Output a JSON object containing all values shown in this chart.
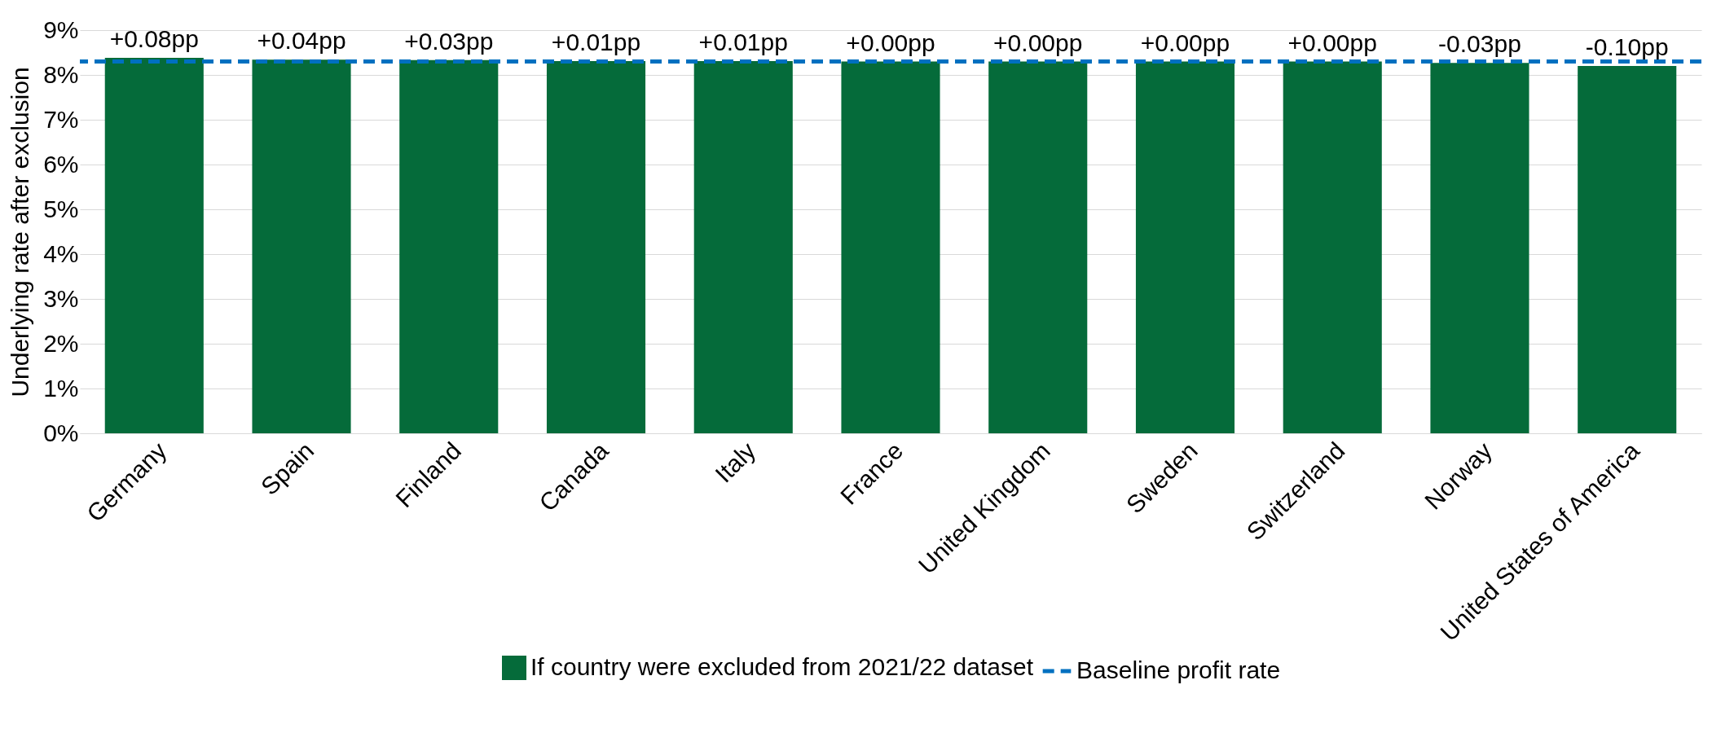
{
  "chart_data": {
    "type": "bar",
    "ylabel": "Underlying rate after exclusion",
    "categories": [
      "Germany",
      "Spain",
      "Finland",
      "Canada",
      "Italy",
      "France",
      "United Kingdom",
      "Sweden",
      "Switzerland",
      "Norway",
      "United States of America"
    ],
    "series": [
      {
        "name": "If country were excluded from 2021/22 dataset",
        "color": "#056b3a",
        "values": [
          8.38,
          8.34,
          8.33,
          8.31,
          8.31,
          8.3,
          8.3,
          8.3,
          8.3,
          8.27,
          8.2
        ]
      }
    ],
    "annotations": [
      {
        "text": "+0.08pp",
        "x": "Germany",
        "y": 8.38
      },
      {
        "text": "+0.04pp",
        "x": "Spain",
        "y": 8.34
      },
      {
        "text": "+0.03pp",
        "x": "Finland",
        "y": 8.33
      },
      {
        "text": "+0.01pp",
        "x": "Canada",
        "y": 8.31
      },
      {
        "text": "+0.01pp",
        "x": "Italy",
        "y": 8.31
      },
      {
        "text": "+0.00pp",
        "x": "France",
        "y": 8.3
      },
      {
        "text": "+0.00pp",
        "x": "United Kingdom",
        "y": 8.3
      },
      {
        "text": "+0.00pp",
        "x": "Sweden",
        "y": 8.3
      },
      {
        "text": "+0.00pp",
        "x": "Switzerland",
        "y": 8.3
      },
      {
        "text": "-0.03pp",
        "x": "Norway",
        "y": 8.27
      },
      {
        "text": "-0.10pp",
        "x": "United States of America",
        "y": 8.2
      }
    ],
    "ref_lines": [
      {
        "axis": "y",
        "value": 8.3,
        "label": "Baseline profit rate",
        "color": "#0070c0",
        "line_style": "dashed"
      }
    ],
    "ylim": [
      0,
      9
    ],
    "yticks": [
      {
        "value": 0,
        "label": "0%"
      },
      {
        "value": 1,
        "label": "1%"
      },
      {
        "value": 2,
        "label": "2%"
      },
      {
        "value": 3,
        "label": "3%"
      },
      {
        "value": 4,
        "label": "4%"
      },
      {
        "value": 5,
        "label": "5%"
      },
      {
        "value": 6,
        "label": "6%"
      },
      {
        "value": 7,
        "label": "7%"
      },
      {
        "value": 8,
        "label": "8%"
      },
      {
        "value": 9,
        "label": "9%"
      }
    ],
    "grid": "y",
    "legend": "bottom"
  }
}
